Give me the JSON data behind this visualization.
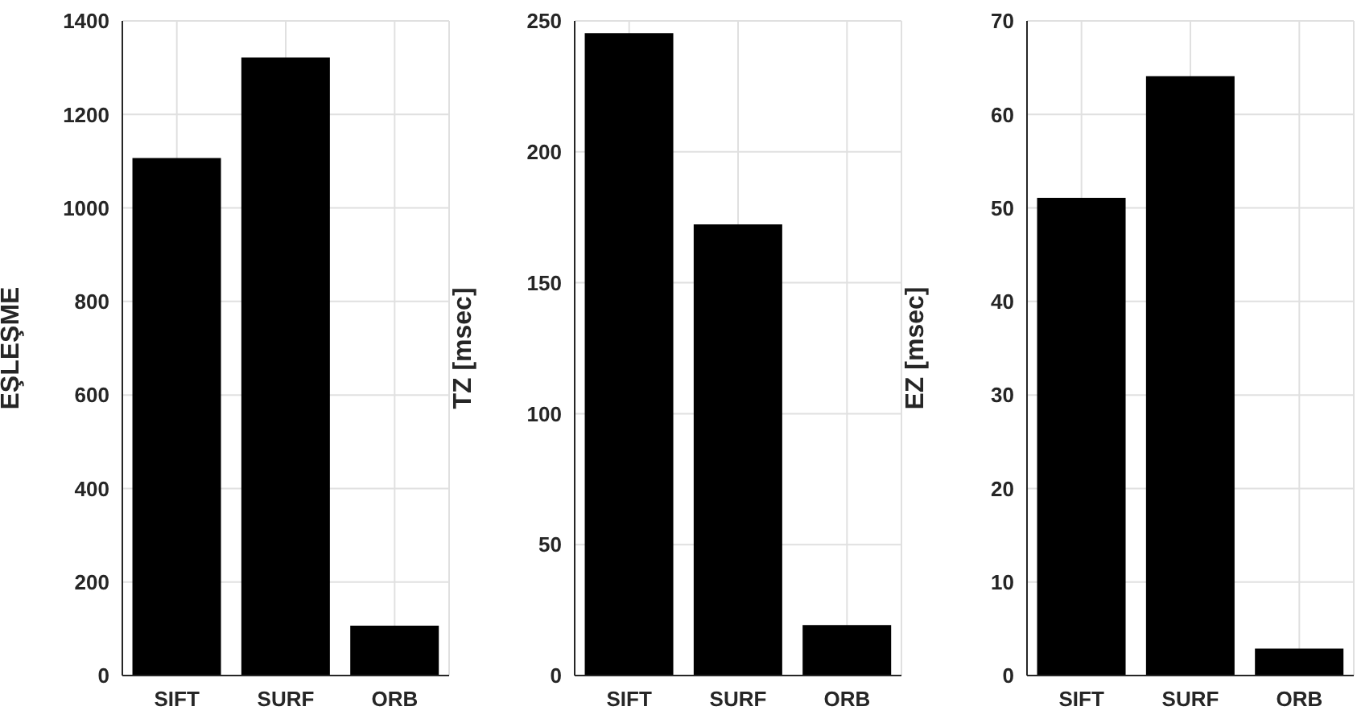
{
  "chart_data": [
    {
      "type": "bar",
      "categories": [
        "SIFT",
        "SURF",
        "ORB"
      ],
      "values": [
        1105,
        1320,
        105
      ],
      "color": "#000000",
      "ylabel": "EŞLEŞME",
      "ylim": [
        0,
        1400
      ],
      "yticks": [
        0,
        200,
        400,
        600,
        800,
        1000,
        1200,
        1400
      ],
      "grid": true
    },
    {
      "type": "bar",
      "categories": [
        "SIFT",
        "SURF",
        "ORB"
      ],
      "values": [
        245,
        172,
        19
      ],
      "color": "#000000",
      "ylabel": "TZ [msec]",
      "ylim": [
        0,
        250
      ],
      "yticks": [
        0,
        50,
        100,
        150,
        200,
        250
      ],
      "grid": true
    },
    {
      "type": "bar",
      "categories": [
        "SIFT",
        "SURF",
        "ORB"
      ],
      "values": [
        51,
        64,
        2.8
      ],
      "color": "#000000",
      "ylabel": "EZ [msec]",
      "ylim": [
        0,
        70
      ],
      "yticks": [
        0,
        10,
        20,
        30,
        40,
        50,
        60,
        70
      ],
      "grid": true
    }
  ]
}
